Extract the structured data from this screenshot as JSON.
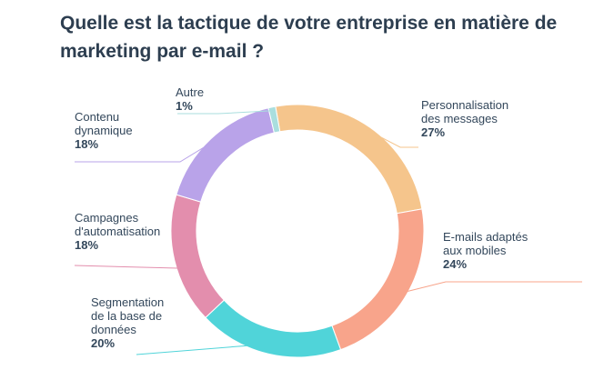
{
  "chart_data": {
    "type": "pie",
    "title": "Quelle est la tactique de votre entreprise en matière de marketing par e-mail ?",
    "donut": true,
    "unit": "%",
    "slices": [
      {
        "label": "Personnalisation des messages",
        "value": 27,
        "display": "27%",
        "color": "#f5c58c"
      },
      {
        "label": "E-mails adaptés aux mobiles",
        "value": 24,
        "display": "24%",
        "color": "#f8a48b"
      },
      {
        "label": "Segmentation de la base de données",
        "value": 20,
        "display": "20%",
        "color": "#50d4d9"
      },
      {
        "label": "Campagnes d'automatisation",
        "value": 18,
        "display": "18%",
        "color": "#e38ead"
      },
      {
        "label": "Contenu dynamique",
        "value": 18,
        "display": "18%",
        "color": "#b9a3e9"
      },
      {
        "label": "Autre",
        "value": 1,
        "display": "1%",
        "color": "#a9dede"
      }
    ]
  }
}
